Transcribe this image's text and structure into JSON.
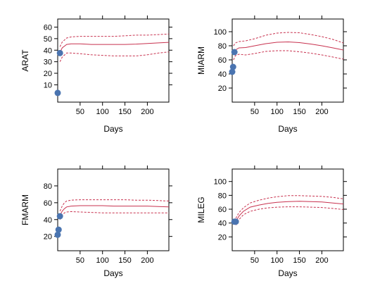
{
  "chart_data": [
    {
      "type": "line",
      "ylabel": "ARAT",
      "xlabel": "Days",
      "xlim": [
        0,
        248
      ],
      "ylim": [
        -5,
        67
      ],
      "xticks": [
        50,
        100,
        150,
        200
      ],
      "yticks": [
        10,
        20,
        30,
        40,
        50,
        60
      ],
      "series": [
        {
          "role": "fit",
          "style": "solid",
          "x": [
            5,
            10,
            20,
            30,
            50,
            75,
            100,
            125,
            150,
            175,
            200,
            225,
            248
          ],
          "y": [
            38,
            42,
            45,
            45.5,
            45.5,
            45,
            45,
            45,
            45,
            45.3,
            45.8,
            46.3,
            46.8
          ]
        },
        {
          "role": "upper",
          "style": "dashed",
          "x": [
            5,
            10,
            20,
            30,
            50,
            75,
            100,
            125,
            150,
            175,
            200,
            225,
            248
          ],
          "y": [
            43,
            47,
            50.5,
            51.5,
            52,
            52,
            52,
            52,
            52.5,
            53,
            53,
            53.5,
            54
          ]
        },
        {
          "role": "lower",
          "style": "dashed",
          "x": [
            5,
            10,
            20,
            30,
            50,
            75,
            100,
            125,
            150,
            175,
            200,
            225,
            248
          ],
          "y": [
            30,
            34,
            37.5,
            37.5,
            37,
            36,
            35.5,
            35,
            35,
            35,
            36,
            37.5,
            38.5
          ]
        }
      ],
      "points": [
        {
          "x": 0,
          "y": 3
        },
        {
          "x": 5,
          "y": 37.5
        }
      ]
    },
    {
      "type": "line",
      "ylabel": "MIARM",
      "xlabel": "Days",
      "xlim": [
        0,
        248
      ],
      "ylim": [
        0,
        118
      ],
      "xticks": [
        50,
        100,
        150,
        200
      ],
      "yticks": [
        20,
        40,
        60,
        80,
        100
      ],
      "series": [
        {
          "role": "fit",
          "style": "solid",
          "x": [
            3,
            7,
            15,
            30,
            50,
            75,
            100,
            125,
            150,
            175,
            200,
            225,
            248
          ],
          "y": [
            70,
            74,
            77,
            77.5,
            80,
            83,
            85,
            85.5,
            84.5,
            82.5,
            80,
            77,
            74
          ]
        },
        {
          "role": "upper",
          "style": "dashed",
          "x": [
            3,
            7,
            15,
            30,
            50,
            75,
            100,
            125,
            150,
            175,
            200,
            225,
            248
          ],
          "y": [
            80,
            84,
            86,
            87,
            90,
            95,
            98,
            99,
            98.5,
            96,
            93,
            89,
            84
          ]
        },
        {
          "role": "lower",
          "style": "dashed",
          "x": [
            3,
            7,
            15,
            30,
            50,
            75,
            100,
            125,
            150,
            175,
            200,
            225,
            248
          ],
          "y": [
            60,
            66,
            68,
            67,
            69,
            72,
            73,
            73,
            71.5,
            69.5,
            67,
            64,
            61
          ]
        }
      ],
      "points": [
        {
          "x": 0,
          "y": 43
        },
        {
          "x": 2,
          "y": 50
        },
        {
          "x": 5,
          "y": 71
        }
      ]
    },
    {
      "type": "line",
      "ylabel": "FMARM",
      "xlabel": "Days",
      "xlim": [
        0,
        248
      ],
      "ylim": [
        3,
        100
      ],
      "xticks": [
        50,
        100,
        150,
        200
      ],
      "yticks": [
        20,
        40,
        60,
        80
      ],
      "series": [
        {
          "role": "fit",
          "style": "solid",
          "x": [
            5,
            10,
            15,
            20,
            30,
            50,
            75,
            100,
            125,
            150,
            175,
            200,
            225,
            248
          ],
          "y": [
            45,
            50,
            53,
            55,
            56,
            56.5,
            56.5,
            56.5,
            56,
            56,
            56,
            56,
            55.5,
            55
          ]
        },
        {
          "role": "upper",
          "style": "dashed",
          "x": [
            5,
            10,
            15,
            20,
            30,
            50,
            75,
            100,
            125,
            150,
            175,
            200,
            225,
            248
          ],
          "y": [
            50,
            56,
            60,
            62,
            63,
            63.5,
            63.5,
            63.5,
            63.5,
            63.5,
            63,
            63,
            62.5,
            62
          ]
        },
        {
          "role": "lower",
          "style": "dashed",
          "x": [
            5,
            10,
            15,
            20,
            30,
            50,
            75,
            100,
            125,
            150,
            175,
            200,
            225,
            248
          ],
          "y": [
            40,
            45,
            48,
            49,
            49.5,
            49,
            48.5,
            48,
            48,
            48,
            48,
            48,
            48,
            48
          ]
        }
      ],
      "points": [
        {
          "x": 0,
          "y": 22
        },
        {
          "x": 2,
          "y": 28
        },
        {
          "x": 5,
          "y": 44
        }
      ]
    },
    {
      "type": "line",
      "ylabel": "MILEG",
      "xlabel": "Days",
      "xlim": [
        0,
        248
      ],
      "ylim": [
        0,
        118
      ],
      "xticks": [
        50,
        100,
        150,
        200
      ],
      "yticks": [
        20,
        40,
        60,
        80,
        100
      ],
      "series": [
        {
          "role": "fit",
          "style": "solid",
          "x": [
            8,
            15,
            25,
            40,
            60,
            80,
            100,
            125,
            150,
            175,
            200,
            225,
            248
          ],
          "y": [
            42,
            50,
            57,
            63,
            66,
            68.5,
            70,
            71,
            71.5,
            71,
            70.5,
            69,
            67.5
          ]
        },
        {
          "role": "upper",
          "style": "dashed",
          "x": [
            8,
            15,
            25,
            40,
            60,
            80,
            100,
            125,
            150,
            175,
            200,
            225,
            248
          ],
          "y": [
            47,
            55,
            62,
            69,
            73,
            76,
            78,
            79.5,
            79.5,
            79,
            78.5,
            77,
            75
          ]
        },
        {
          "role": "lower",
          "style": "dashed",
          "x": [
            8,
            15,
            25,
            40,
            60,
            80,
            100,
            125,
            150,
            175,
            200,
            225,
            248
          ],
          "y": [
            37,
            45,
            52,
            57,
            60,
            62,
            63,
            63.5,
            63.5,
            63,
            62.5,
            61,
            59.5
          ]
        }
      ],
      "points": [
        {
          "x": 5,
          "y": 42
        },
        {
          "x": 8,
          "y": 42
        }
      ]
    }
  ],
  "colors": {
    "fit": "#c8324f",
    "band": "#c8324f",
    "point": "#4a74b0",
    "axis": "#000000"
  }
}
